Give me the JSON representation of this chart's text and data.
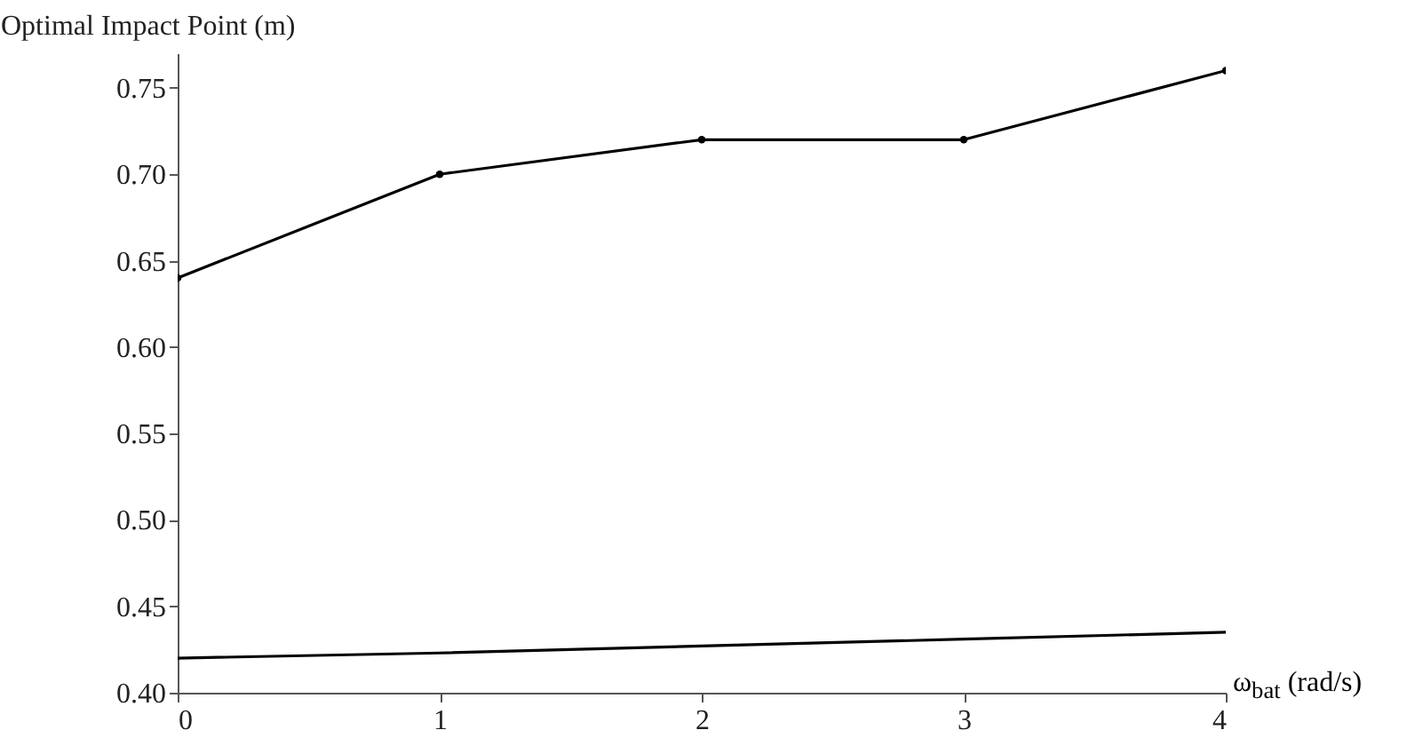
{
  "chart_data": {
    "type": "line",
    "ylabel": "Optimal Impact Point (m)",
    "xlabel": "ω$_{bat}$ (rad/s)",
    "x": [
      0,
      1,
      2,
      3,
      4
    ],
    "xlim": [
      0,
      4
    ],
    "xticks": [
      0,
      1,
      2,
      3,
      4
    ],
    "ylim": [
      0.4,
      0.77
    ],
    "yticks": [
      {
        "value": 0.4,
        "label": "0.40"
      },
      0.45,
      {
        "value": 0.5,
        "label": "0.50"
      },
      0.55,
      {
        "value": 0.6,
        "label": "0.60"
      },
      0.65,
      {
        "value": 0.7,
        "label": "0.70"
      },
      0.75
    ],
    "series": [
      {
        "color": "#000000",
        "marker": "circle",
        "values": [
          0.64,
          0.7,
          0.72,
          0.72,
          0.76
        ]
      },
      {
        "color": "#000000",
        "marker": "none",
        "values": [
          0.42,
          0.423,
          0.427,
          0.431,
          0.435
        ]
      }
    ],
    "grid": false
  }
}
